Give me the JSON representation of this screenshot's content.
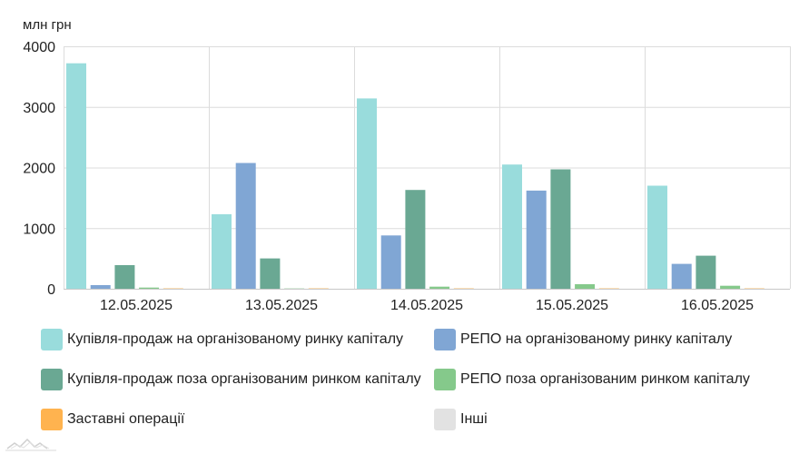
{
  "chart_data": {
    "type": "bar",
    "ylabel": "млн грн",
    "ylim": [
      0,
      4000
    ],
    "yticks": [
      0,
      1000,
      2000,
      3000,
      4000
    ],
    "ytick_labels": [
      "0",
      "1000",
      "2000",
      "3000",
      "4000"
    ],
    "grid": true,
    "legend_position": "bottom",
    "categories": [
      "12.05.2025",
      "13.05.2025",
      "14.05.2025",
      "15.05.2025",
      "16.05.2025"
    ],
    "series": [
      {
        "name": "Купівля-продаж на організованому ринку капіталу",
        "color": "#99dcdc",
        "values": [
          3720,
          1230,
          3140,
          2050,
          1700
        ]
      },
      {
        "name": "РЕПО на організованому ринку капіталу",
        "color": "#80a6d4",
        "values": [
          60,
          2075,
          880,
          1620,
          410
        ]
      },
      {
        "name": "Купівля-продаж поза організованим ринком капіталу",
        "color": "#6aa893",
        "values": [
          390,
          500,
          1630,
          1970,
          545
        ]
      },
      {
        "name": "РЕПО поза організованим ринком капіталу",
        "color": "#85c98b",
        "values": [
          20,
          5,
          35,
          75,
          50
        ]
      },
      {
        "name": "Заставні операції",
        "color": "#ffb34f",
        "values": [
          6,
          6,
          6,
          6,
          6
        ]
      },
      {
        "name": "Інші",
        "color": "#e2e2e2",
        "values": [
          0,
          0,
          0,
          0,
          0
        ]
      }
    ]
  },
  "icons": {
    "logo": "mountain-logo-icon"
  }
}
